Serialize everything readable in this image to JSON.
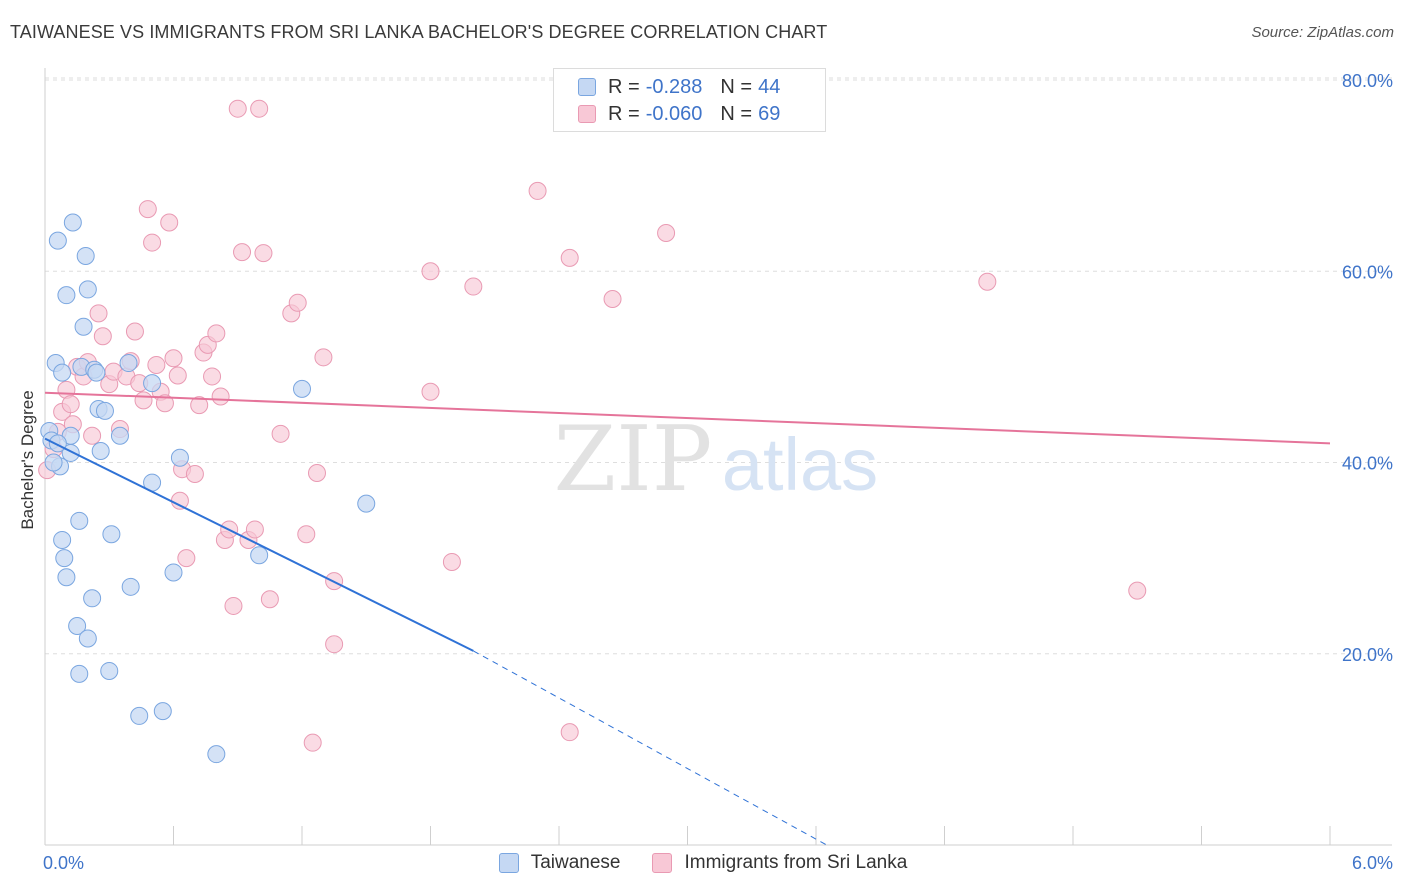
{
  "title": "TAIWANESE VS IMMIGRANTS FROM SRI LANKA BACHELOR'S DEGREE CORRELATION CHART",
  "source": "Source: ZipAtlas.com",
  "watermark": {
    "zip": "ZIP",
    "atlas": "atlas"
  },
  "colors": {
    "blue_fill": "#c5d8f3",
    "blue_stroke": "#7aa6e0",
    "blue_line": "#2f72d6",
    "pink_fill": "#f8c8d6",
    "pink_stroke": "#e99ab3",
    "pink_line": "#e5749a",
    "grid": "#dedede",
    "axis_text": "#3f74c9"
  },
  "legend": {
    "rows": [
      {
        "series": "Taiwanese",
        "r_label": "R =",
        "r_value": "-0.288",
        "n_label": "N =",
        "n_value": "44"
      },
      {
        "series": "Immigrants from Sri Lanka",
        "r_label": "R =",
        "r_value": "-0.060",
        "n_label": "N =",
        "n_value": "69"
      }
    ]
  },
  "chart_data": {
    "type": "scatter",
    "title": "TAIWANESE VS IMMIGRANTS FROM SRI LANKA BACHELOR'S DEGREE CORRELATION CHART",
    "xlabel": "",
    "ylabel": "Bachelor's Degree",
    "xlim": [
      0,
      6
    ],
    "ylim": [
      0,
      80
    ],
    "x_tick_labels": [
      "0.0%",
      "6.0%"
    ],
    "y_ticks": [
      20,
      40,
      60,
      80
    ],
    "y_tick_labels": [
      "20.0%",
      "40.0%",
      "60.0%",
      "80.0%"
    ],
    "series": [
      {
        "name": "Taiwanese",
        "trend": {
          "x0": 0.0,
          "y0": 42.5,
          "x1_solid": 2.0,
          "y1_solid": 20.3,
          "x1_dashed": 3.65,
          "y1_dashed": 0.0
        },
        "points": [
          [
            0.02,
            43.3
          ],
          [
            0.03,
            42.3
          ],
          [
            0.05,
            50.4
          ],
          [
            0.06,
            63.2
          ],
          [
            0.07,
            39.6
          ],
          [
            0.08,
            31.9
          ],
          [
            0.08,
            49.4
          ],
          [
            0.09,
            30.0
          ],
          [
            0.1,
            57.5
          ],
          [
            0.1,
            28.0
          ],
          [
            0.12,
            42.8
          ],
          [
            0.12,
            41.0
          ],
          [
            0.13,
            65.1
          ],
          [
            0.15,
            22.9
          ],
          [
            0.16,
            17.9
          ],
          [
            0.16,
            33.9
          ],
          [
            0.17,
            50.0
          ],
          [
            0.18,
            54.2
          ],
          [
            0.19,
            61.6
          ],
          [
            0.2,
            21.6
          ],
          [
            0.2,
            58.1
          ],
          [
            0.22,
            25.8
          ],
          [
            0.23,
            49.7
          ],
          [
            0.24,
            49.4
          ],
          [
            0.25,
            45.6
          ],
          [
            0.26,
            41.2
          ],
          [
            0.28,
            45.4
          ],
          [
            0.3,
            18.2
          ],
          [
            0.31,
            32.5
          ],
          [
            0.35,
            42.8
          ],
          [
            0.39,
            50.4
          ],
          [
            0.4,
            27.0
          ],
          [
            0.44,
            13.5
          ],
          [
            0.5,
            48.3
          ],
          [
            0.5,
            37.9
          ],
          [
            0.55,
            14.0
          ],
          [
            0.6,
            28.5
          ],
          [
            0.63,
            40.5
          ],
          [
            0.8,
            9.5
          ],
          [
            1.0,
            30.3
          ],
          [
            1.2,
            47.7
          ],
          [
            1.5,
            35.7
          ],
          [
            0.06,
            42.0
          ],
          [
            0.04,
            40.0
          ]
        ]
      },
      {
        "name": "Immigrants from Sri Lanka",
        "trend": {
          "x0": 0.0,
          "y0": 47.3,
          "x1": 6.0,
          "y1": 42.0
        },
        "points": [
          [
            0.01,
            39.2
          ],
          [
            0.04,
            41.4
          ],
          [
            0.06,
            43.2
          ],
          [
            0.08,
            45.3
          ],
          [
            0.1,
            47.6
          ],
          [
            0.12,
            46.1
          ],
          [
            0.13,
            44.0
          ],
          [
            0.15,
            50.0
          ],
          [
            0.18,
            49.0
          ],
          [
            0.2,
            50.5
          ],
          [
            0.22,
            42.8
          ],
          [
            0.25,
            55.6
          ],
          [
            0.27,
            53.2
          ],
          [
            0.3,
            48.2
          ],
          [
            0.32,
            49.5
          ],
          [
            0.35,
            43.5
          ],
          [
            0.38,
            49.0
          ],
          [
            0.4,
            50.6
          ],
          [
            0.42,
            53.7
          ],
          [
            0.44,
            48.3
          ],
          [
            0.46,
            46.5
          ],
          [
            0.48,
            66.5
          ],
          [
            0.5,
            63.0
          ],
          [
            0.52,
            50.2
          ],
          [
            0.54,
            47.4
          ],
          [
            0.56,
            46.2
          ],
          [
            0.58,
            65.1
          ],
          [
            0.6,
            50.9
          ],
          [
            0.62,
            49.1
          ],
          [
            0.63,
            36.0
          ],
          [
            0.64,
            39.3
          ],
          [
            0.66,
            30.0
          ],
          [
            0.7,
            38.8
          ],
          [
            0.72,
            46.0
          ],
          [
            0.74,
            51.5
          ],
          [
            0.76,
            52.3
          ],
          [
            0.78,
            49.0
          ],
          [
            0.8,
            53.5
          ],
          [
            0.82,
            46.9
          ],
          [
            0.84,
            31.9
          ],
          [
            0.86,
            33.0
          ],
          [
            0.88,
            25.0
          ],
          [
            0.9,
            77.0
          ],
          [
            0.92,
            62.0
          ],
          [
            0.95,
            31.9
          ],
          [
            0.98,
            33.0
          ],
          [
            1.0,
            77.0
          ],
          [
            1.02,
            61.9
          ],
          [
            1.05,
            25.7
          ],
          [
            1.1,
            43.0
          ],
          [
            1.15,
            55.6
          ],
          [
            1.18,
            56.7
          ],
          [
            1.22,
            32.5
          ],
          [
            1.25,
            10.7
          ],
          [
            1.27,
            38.9
          ],
          [
            1.3,
            51.0
          ],
          [
            1.35,
            27.6
          ],
          [
            1.35,
            21.0
          ],
          [
            1.8,
            60.0
          ],
          [
            1.8,
            47.4
          ],
          [
            1.9,
            29.6
          ],
          [
            2.0,
            58.4
          ],
          [
            2.3,
            68.4
          ],
          [
            2.45,
            61.4
          ],
          [
            2.45,
            11.8
          ],
          [
            2.65,
            57.1
          ],
          [
            2.9,
            64.0
          ],
          [
            4.4,
            58.9
          ],
          [
            5.1,
            26.6
          ]
        ]
      }
    ]
  },
  "bottom_legend": [
    "Taiwanese",
    "Immigrants from Sri Lanka"
  ]
}
